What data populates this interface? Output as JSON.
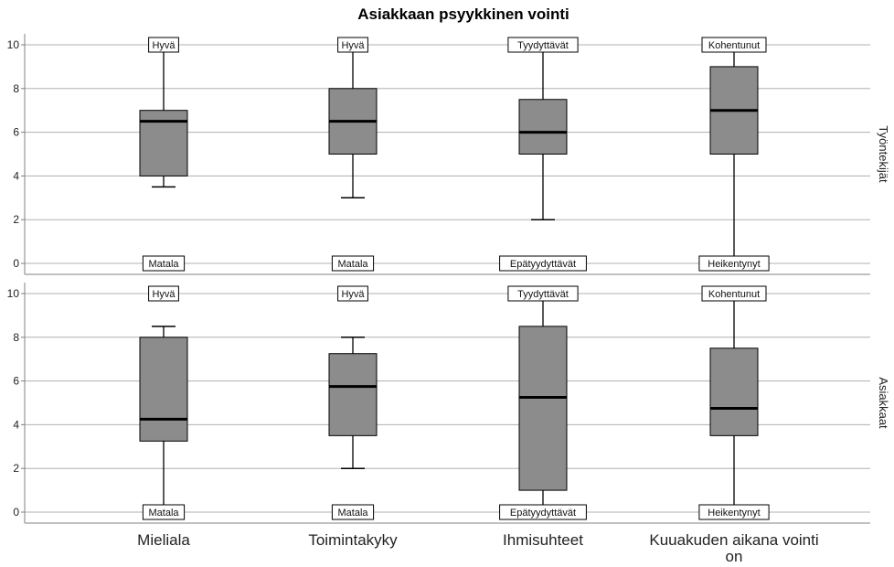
{
  "chart_data": {
    "type": "boxplot",
    "title": "Asiakkaan psyykkinen vointi",
    "categories": [
      "Mieliala",
      "Toimintakyky",
      "Ihmisuhteet",
      "Kuuakuden aikana vointi on"
    ],
    "ylim": [
      0,
      10
    ],
    "yticks": [
      0,
      2,
      4,
      6,
      8,
      10
    ],
    "grid": true,
    "panels": [
      {
        "label": "Työntekijät",
        "boxes": [
          {
            "min": 3.5,
            "q1": 4,
            "median": 6.5,
            "q3": 7,
            "max": 10
          },
          {
            "min": 3,
            "q1": 5,
            "median": 6.5,
            "q3": 8,
            "max": 10
          },
          {
            "min": 2,
            "q1": 5,
            "median": 6,
            "q3": 7.5,
            "max": 10
          },
          {
            "min": 0,
            "q1": 5,
            "median": 7,
            "q3": 9,
            "max": 10
          }
        ],
        "top_labels": [
          "Hyvä",
          "Hyvä",
          "Tyydyttävät",
          "Kohentunut"
        ],
        "bottom_labels": [
          "Matala",
          "Matala",
          "Epätyydyttävät",
          "Heikentynyt"
        ]
      },
      {
        "label": "Asiakkaat",
        "boxes": [
          {
            "min": 0,
            "q1": 3.25,
            "median": 4.25,
            "q3": 8,
            "max": 8.5
          },
          {
            "min": 2,
            "q1": 3.5,
            "median": 5.75,
            "q3": 7.25,
            "max": 8
          },
          {
            "min": 0,
            "q1": 1,
            "median": 5.25,
            "q3": 8.5,
            "max": 10
          },
          {
            "min": 0,
            "q1": 3.5,
            "median": 4.75,
            "q3": 7.5,
            "max": 10
          }
        ],
        "top_labels": [
          "Hyvä",
          "Hyvä",
          "Tyydyttävät",
          "Kohentunut"
        ],
        "bottom_labels": [
          "Matala",
          "Matala",
          "Epätyydyttävät",
          "Heikentynyt"
        ]
      }
    ],
    "colors": {
      "box_fill": "#8c8c8c",
      "grid": "#b0b0b0",
      "axis": "#808080"
    }
  }
}
